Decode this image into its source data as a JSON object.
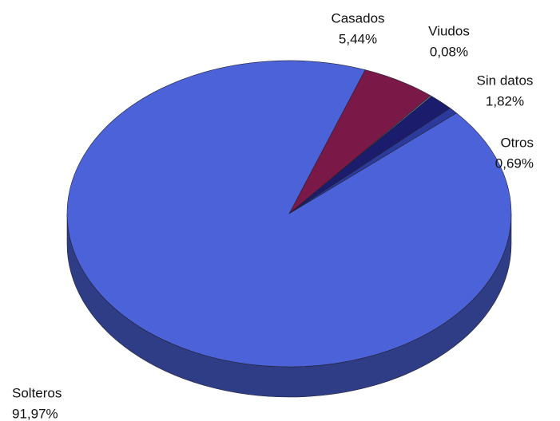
{
  "chart_data": {
    "type": "pie",
    "categories": [
      "Casados",
      "Viudos",
      "Sin datos",
      "Otros",
      "Solteros"
    ],
    "values": [
      5.44,
      0.08,
      1.82,
      0.69,
      91.97
    ],
    "value_labels": [
      "5,44%",
      "0,08%",
      "1,82%",
      "0,69%",
      "91,97%"
    ],
    "colors": [
      "#7a1848",
      "#a6dcec",
      "#1c1c6c",
      "#2c3a9c",
      "#4c62d8"
    ]
  }
}
